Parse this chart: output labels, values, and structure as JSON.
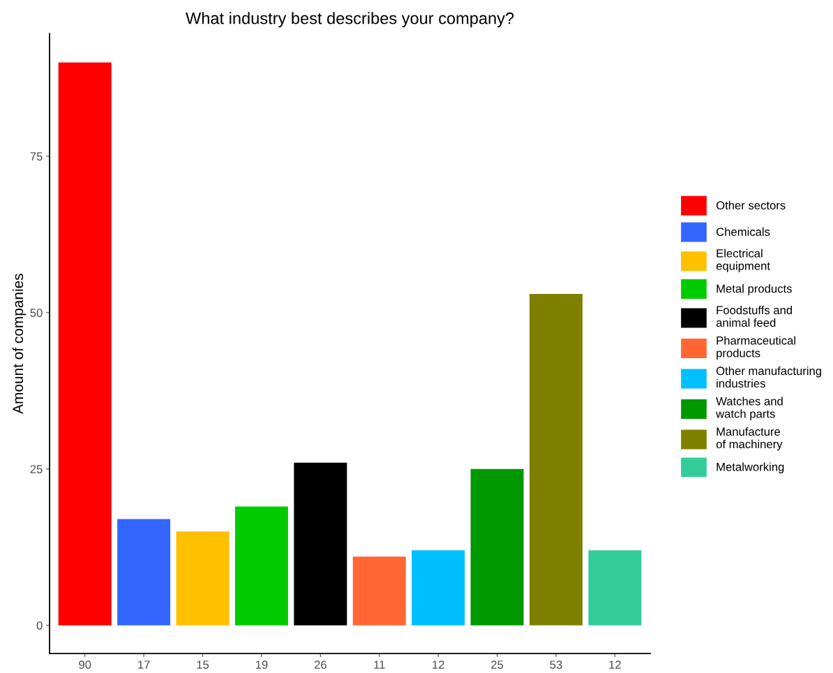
{
  "chart_data": {
    "type": "bar",
    "title": "What industry best describes your company?",
    "ylabel": "Amount of companies",
    "categories": [
      "90",
      "17",
      "15",
      "19",
      "26",
      "11",
      "12",
      "25",
      "53",
      "12"
    ],
    "series": [
      {
        "name": "Other sectors",
        "color": "#ff0000",
        "values": [
          90,
          null,
          null,
          null,
          null,
          null,
          null,
          null,
          null,
          null
        ]
      },
      {
        "name": "Chemicals",
        "color": "#3366ff",
        "values": [
          null,
          17,
          null,
          null,
          null,
          null,
          null,
          null,
          null,
          null
        ]
      },
      {
        "name": "Electrical\nequipment",
        "color": "#ffc000",
        "values": [
          null,
          null,
          15,
          null,
          null,
          null,
          null,
          null,
          null,
          null
        ]
      },
      {
        "name": "Metal products",
        "color": "#00cc00",
        "values": [
          null,
          null,
          null,
          19,
          null,
          null,
          null,
          null,
          null,
          null
        ]
      },
      {
        "name": "Foodstuffs and\nanimal feed",
        "color": "#000000",
        "values": [
          null,
          null,
          null,
          null,
          26,
          null,
          null,
          null,
          null,
          null
        ]
      },
      {
        "name": "Pharmaceutical\nproducts",
        "color": "#ff6633",
        "values": [
          null,
          null,
          null,
          null,
          null,
          11,
          null,
          null,
          null,
          null
        ]
      },
      {
        "name": "Other manufacturing\nindustries",
        "color": "#00bfff",
        "values": [
          null,
          null,
          null,
          null,
          null,
          null,
          12,
          null,
          null,
          null
        ]
      },
      {
        "name": "Watches and\nwatch parts",
        "color": "#009900",
        "values": [
          null,
          null,
          null,
          null,
          null,
          null,
          null,
          25,
          null,
          null
        ]
      },
      {
        "name": "Manufacture\nof machinery",
        "color": "#808000",
        "values": [
          null,
          null,
          null,
          null,
          null,
          null,
          null,
          null,
          53,
          null
        ]
      },
      {
        "name": "Metalworking",
        "color": "#33cc99",
        "values": [
          null,
          null,
          null,
          null,
          null,
          null,
          null,
          null,
          null,
          12
        ]
      }
    ],
    "ylim": [
      -4.5,
      94.6
    ],
    "yticks": [
      0,
      25,
      50,
      75
    ],
    "grid": false,
    "legend": "right"
  }
}
